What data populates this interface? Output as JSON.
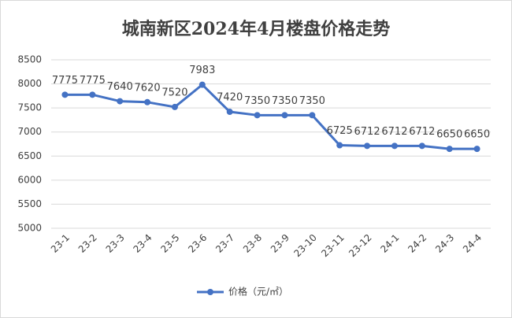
{
  "chart_data": {
    "type": "line",
    "title": "城南新区2024年4月楼盘价格走势",
    "categories": [
      "23-1",
      "23-2",
      "23-3",
      "23-4",
      "23-5",
      "23-6",
      "23-7",
      "23-8",
      "23-9",
      "23-10",
      "23-11",
      "23-12",
      "24-1",
      "24-2",
      "24-3",
      "24-4"
    ],
    "series": [
      {
        "name": "价格（元/㎡）",
        "color": "#4472c4",
        "values": [
          7775,
          7775,
          7640,
          7620,
          7520,
          7983,
          7420,
          7350,
          7350,
          7350,
          6725,
          6712,
          6712,
          6712,
          6650,
          6650
        ]
      }
    ],
    "ylim": [
      5000,
      8500
    ],
    "yticks": [
      5000,
      5500,
      6000,
      6500,
      7000,
      7500,
      8000,
      8500
    ],
    "grid": true,
    "legend": "bottom"
  }
}
